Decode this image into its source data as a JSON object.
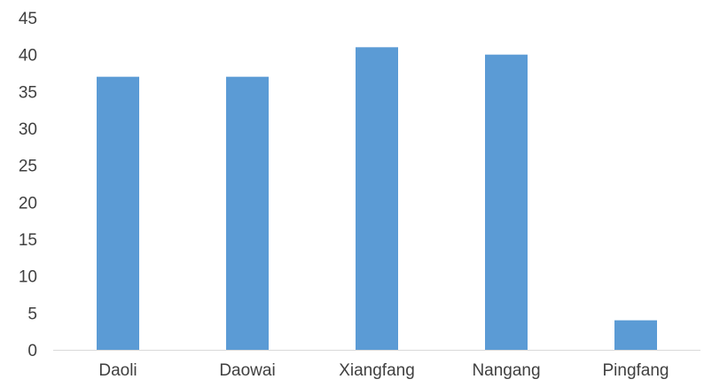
{
  "chart_data": {
    "type": "bar",
    "title": "",
    "xlabel": "",
    "ylabel": "",
    "categories": [
      "Daoli",
      "Daowai",
      "Xiangfang",
      "Nangang",
      "Pingfang"
    ],
    "values": [
      37,
      37,
      41,
      40,
      4
    ],
    "ylim": [
      0,
      45
    ],
    "yticks": [
      "0",
      "5",
      "10",
      "15",
      "20",
      "25",
      "30",
      "35",
      "40",
      "45"
    ],
    "grid": false,
    "legend": "none",
    "colors": {
      "bar": "#5B9BD5",
      "axis": "#D9D9D9",
      "text": "#404040"
    }
  }
}
